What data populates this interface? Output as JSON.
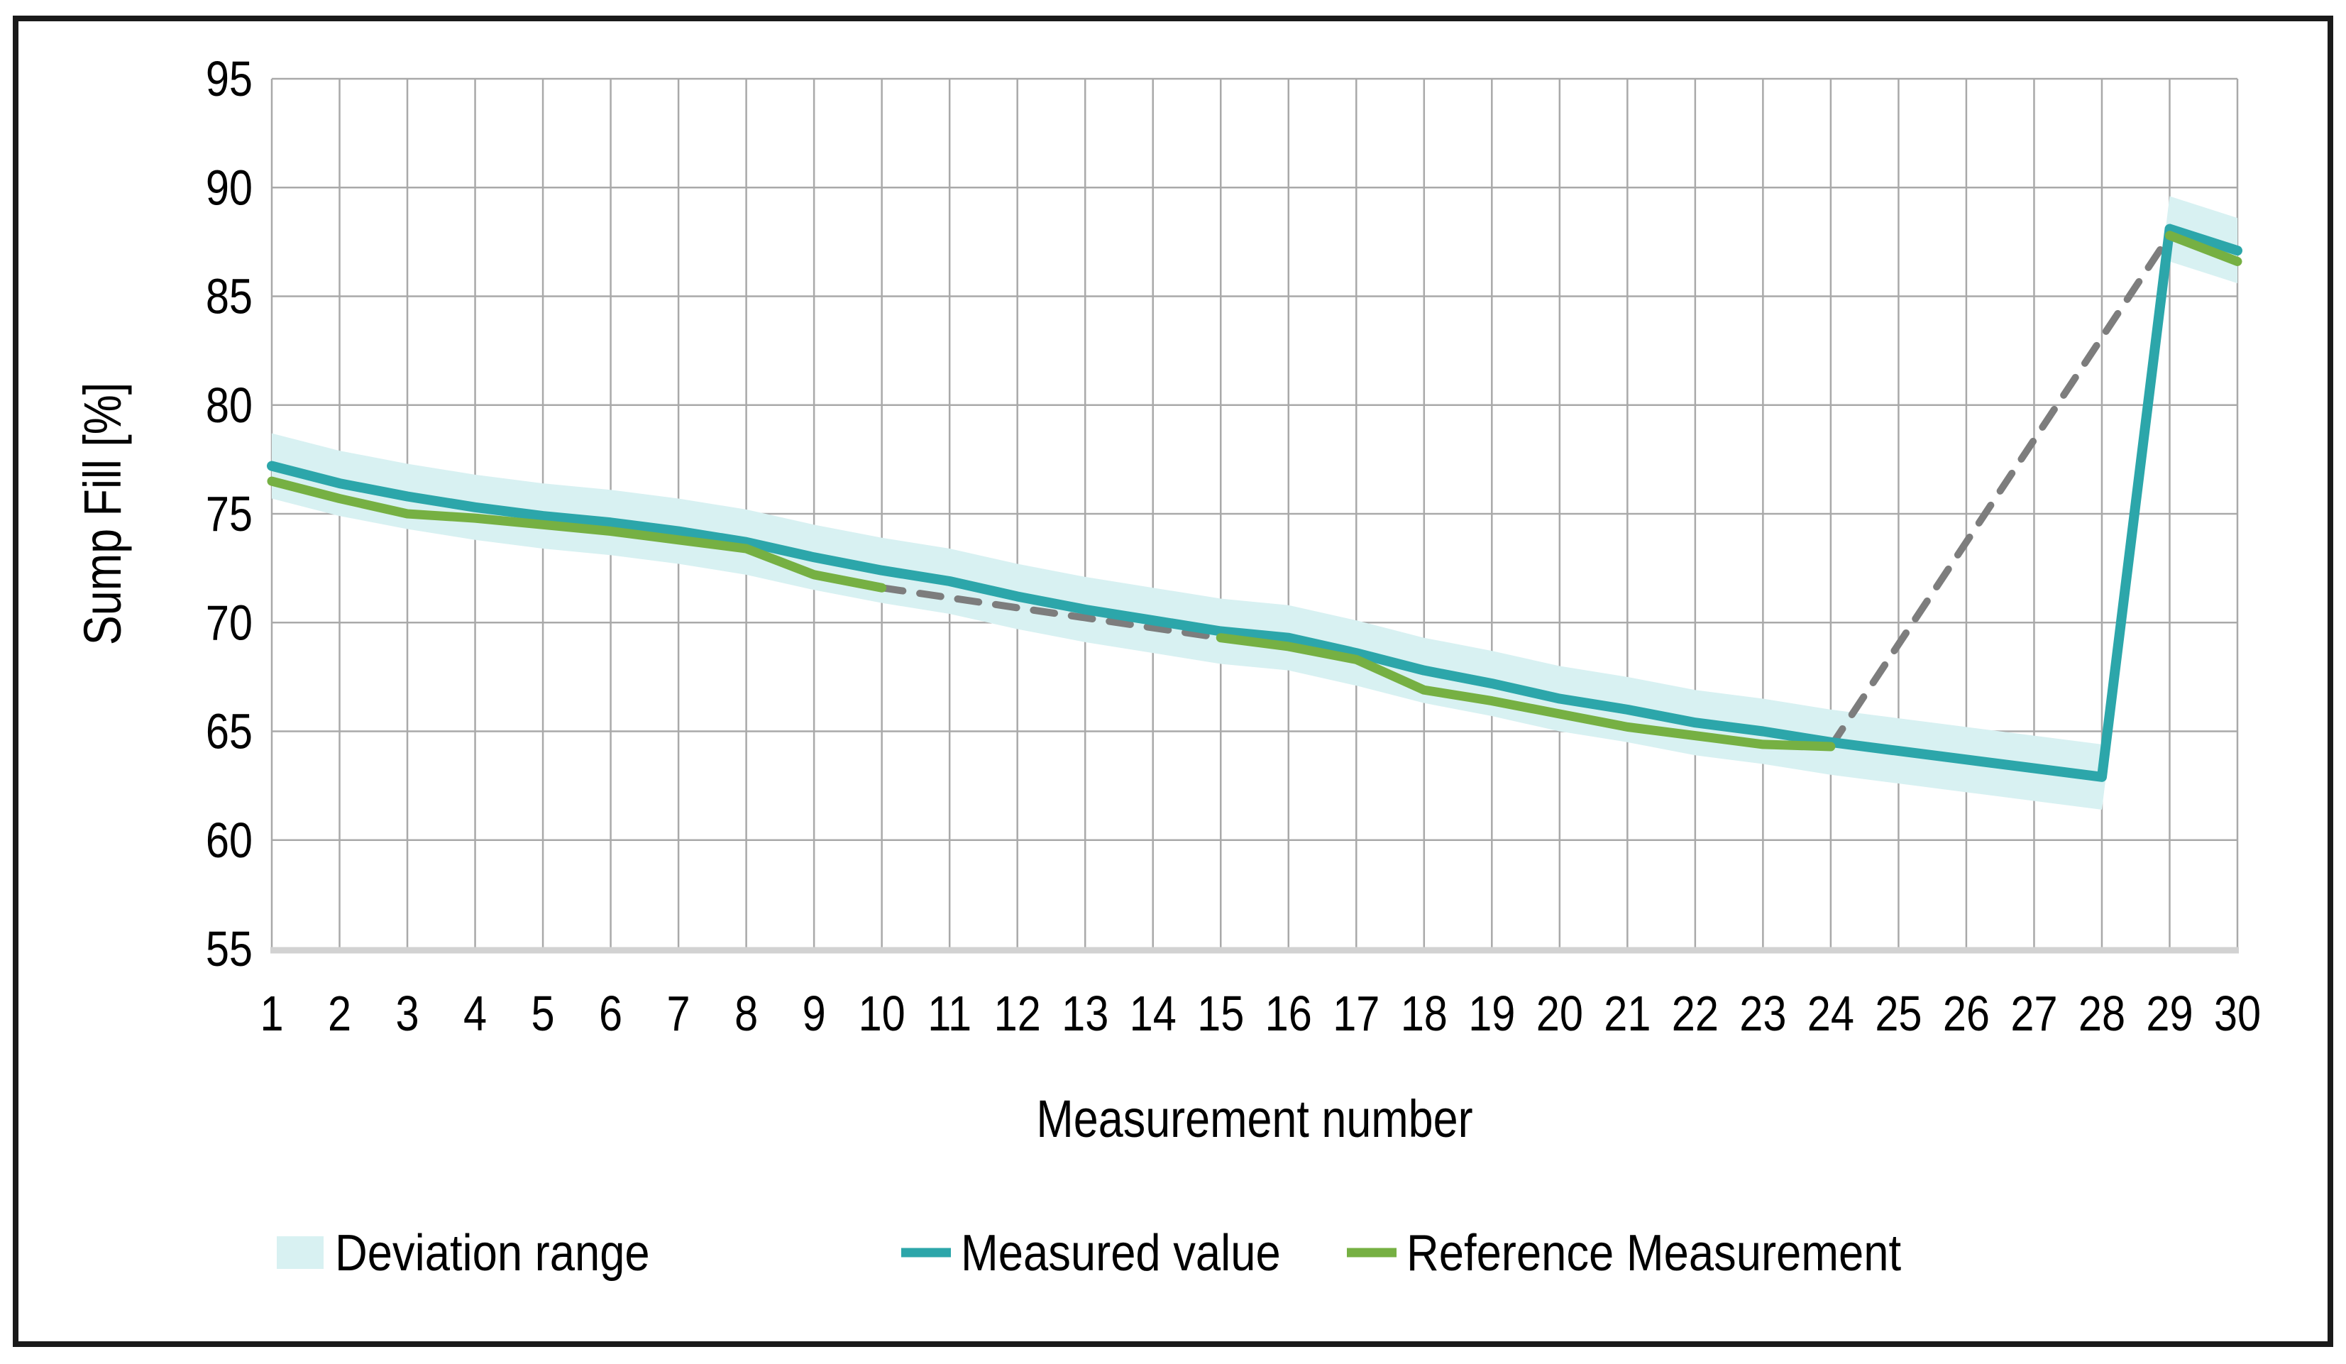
{
  "figure": {
    "kind": "excel-style line chart",
    "background": "#FFFFFF",
    "border_color": "#1A1A1A"
  },
  "chart_data": {
    "type": "line",
    "title": "",
    "xlabel": "Measurement number",
    "ylabel": "Sump Fill [%]",
    "x": [
      1,
      2,
      3,
      4,
      5,
      6,
      7,
      8,
      9,
      10,
      11,
      12,
      13,
      14,
      15,
      16,
      17,
      18,
      19,
      20,
      21,
      22,
      23,
      24,
      25,
      26,
      27,
      28,
      29,
      30
    ],
    "xticks": [
      "1",
      "2",
      "3",
      "4",
      "5",
      "6",
      "7",
      "8",
      "9",
      "10",
      "11",
      "12",
      "13",
      "14",
      "15",
      "16",
      "17",
      "18",
      "19",
      "20",
      "21",
      "22",
      "23",
      "24",
      "25",
      "26",
      "27",
      "28",
      "29",
      "30"
    ],
    "yticks": [
      "55",
      "60",
      "65",
      "70",
      "75",
      "80",
      "85",
      "90",
      "95"
    ],
    "ylim": [
      55,
      95
    ],
    "grid": true,
    "legend_position": "bottom",
    "series": [
      {
        "name": "Deviation range",
        "type": "band",
        "around": "Measured value",
        "half_width": 1.5,
        "color": "#D8F1F2"
      },
      {
        "name": "Measured value",
        "type": "line",
        "color": "#2CA6AA",
        "values": [
          77.2,
          76.4,
          75.8,
          75.3,
          74.9,
          74.6,
          74.2,
          73.7,
          73.0,
          72.4,
          71.9,
          71.2,
          70.6,
          70.1,
          69.6,
          69.3,
          68.6,
          67.8,
          67.2,
          66.5,
          66.0,
          65.4,
          65.0,
          64.5,
          64.1,
          63.7,
          63.3,
          62.9,
          88.1,
          87.1
        ]
      },
      {
        "name": "Reference Measurement",
        "type": "line",
        "color": "#76B043",
        "segments": [
          {
            "x_start": 1,
            "values": [
              76.5,
              75.7,
              75.0,
              74.8,
              74.5,
              74.2,
              73.8,
              73.4,
              72.2,
              71.6
            ]
          },
          {
            "x_start": 15,
            "values": [
              69.3,
              68.9,
              68.3,
              66.9,
              66.4,
              65.8,
              65.2,
              64.8,
              64.4,
              64.3
            ]
          },
          {
            "x_start": 29,
            "values": [
              87.8,
              86.6
            ]
          }
        ]
      },
      {
        "name": "Reference gap connector (dashed)",
        "type": "dashed_line",
        "color": "#7D7D7D",
        "segments": [
          {
            "from": [
              10,
              71.6
            ],
            "to": [
              15,
              69.3
            ]
          },
          {
            "from": [
              24,
              64.3
            ],
            "to": [
              29,
              87.8
            ]
          }
        ]
      }
    ],
    "legend": [
      "Deviation range",
      "Measured value",
      "Reference Measurement"
    ]
  },
  "colors": {
    "gridline": "#A9A9A9",
    "axis_line": "#D2D2D2",
    "measured": "#2CA6AA",
    "reference": "#76B043",
    "deviation_band": "#D8F1F2",
    "dashed_connector": "#7D7D7D",
    "text": "#000000"
  }
}
